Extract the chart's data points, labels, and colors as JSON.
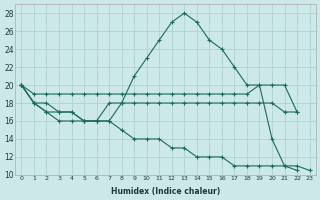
{
  "xlabel": "Humidex (Indice chaleur)",
  "background_color": "#cce8e8",
  "grid_color": "#aacece",
  "line_color": "#1a6b5a",
  "xlim": [
    -0.5,
    23.5
  ],
  "ylim": [
    10,
    29
  ],
  "yticks": [
    10,
    12,
    14,
    16,
    18,
    20,
    22,
    24,
    26,
    28
  ],
  "xticks": [
    0,
    1,
    2,
    3,
    4,
    5,
    6,
    7,
    8,
    9,
    10,
    11,
    12,
    13,
    14,
    15,
    16,
    17,
    18,
    19,
    20,
    21,
    22,
    23
  ],
  "series": [
    {
      "x": [
        0,
        1,
        2,
        3,
        4,
        5,
        6,
        7,
        8,
        9,
        10,
        11,
        12,
        13,
        14,
        15,
        16,
        17,
        18,
        19,
        20,
        21,
        22,
        23
      ],
      "y": [
        20,
        18,
        18,
        17,
        17,
        16,
        16,
        18,
        18,
        21,
        23,
        25,
        27,
        28,
        27,
        25,
        24,
        22,
        20,
        20,
        14,
        11,
        10.5,
        null
      ]
    },
    {
      "x": [
        0,
        1,
        2,
        3,
        4,
        5,
        6,
        7,
        8,
        9,
        10,
        11,
        12,
        13,
        14,
        15,
        16,
        17,
        18,
        19,
        20,
        21,
        22,
        23
      ],
      "y": [
        20,
        19,
        19,
        19,
        19,
        19,
        19,
        19,
        19,
        19,
        19,
        19,
        19,
        19,
        19,
        19,
        19,
        19,
        19,
        20,
        20,
        20,
        17,
        null
      ]
    },
    {
      "x": [
        0,
        1,
        2,
        3,
        4,
        5,
        6,
        7,
        8,
        9,
        10,
        11,
        12,
        13,
        14,
        15,
        16,
        17,
        18,
        19,
        20,
        21,
        22,
        23
      ],
      "y": [
        20,
        18,
        17,
        17,
        17,
        16,
        16,
        16,
        18,
        18,
        18,
        18,
        18,
        18,
        18,
        18,
        18,
        18,
        18,
        18,
        18,
        17,
        17,
        null
      ]
    },
    {
      "x": [
        0,
        1,
        2,
        3,
        4,
        5,
        6,
        7,
        8,
        9,
        10,
        11,
        12,
        13,
        14,
        15,
        16,
        17,
        18,
        19,
        20,
        21,
        22,
        23
      ],
      "y": [
        20,
        18,
        17,
        16,
        16,
        16,
        16,
        16,
        15,
        14,
        14,
        14,
        13,
        13,
        12,
        12,
        12,
        11,
        11,
        11,
        11,
        11,
        11,
        10.5
      ]
    }
  ]
}
